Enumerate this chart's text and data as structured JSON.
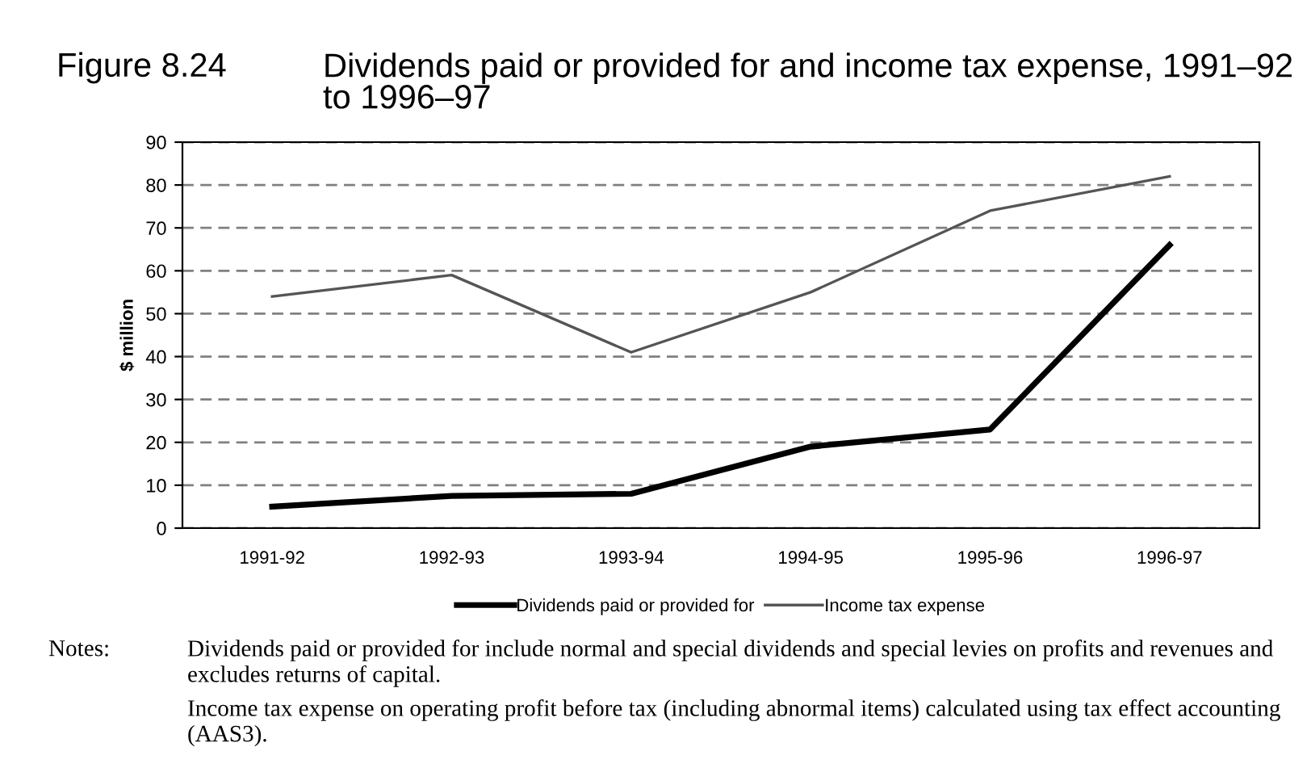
{
  "chart_data": {
    "type": "line",
    "title": "Figure 8.24",
    "subtitle": "Dividends paid or provided for and income tax expense, 1991–92 to 1996–97",
    "ylabel": "$ million",
    "categories": [
      "1991-92",
      "1992-93",
      "1993-94",
      "1994-95",
      "1995-96",
      "1996-97"
    ],
    "series": [
      {
        "name": "Dividends paid or provided for",
        "color": "#000000",
        "values": [
          5,
          7.5,
          8,
          19,
          23,
          66
        ]
      },
      {
        "name": "Income tax expense",
        "color": "#555555",
        "values": [
          54,
          59,
          41,
          55,
          74,
          82
        ]
      }
    ],
    "ylim": [
      0,
      90
    ],
    "yticks": [
      0,
      10,
      20,
      30,
      40,
      50,
      60,
      70,
      80,
      90
    ],
    "grid": "y",
    "legend": "bottom",
    "marker": "none",
    "line_style": "solid",
    "annotations": [
      "Notes:",
      "Dividends paid or provided for include normal and special dividends and special levies on profits and revenues and  excludes returns of capital.",
      "Income tax expense on operating profit before tax (including abnormal items) calculated using tax effect accounting (AAS3)."
    ]
  }
}
